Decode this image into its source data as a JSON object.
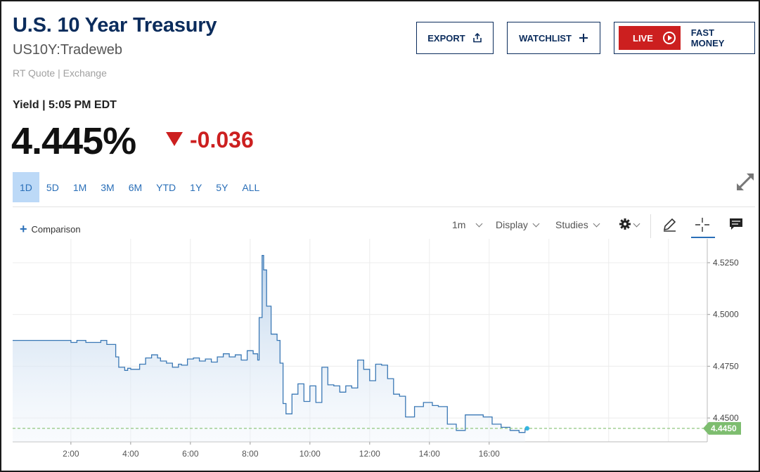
{
  "header": {
    "title": "U.S. 10 Year Treasury",
    "symbol": "US10Y:Tradeweb",
    "quote_source": "RT Quote | Exchange",
    "yield_label": "Yield | 5:05 PM EDT",
    "price": "4.445%",
    "change": "-0.036",
    "change_color": "#cc1f1f"
  },
  "actions": {
    "export_label": "EXPORT",
    "watchlist_label": "WATCHLIST",
    "live_label": "LIVE",
    "fast_money_label": "FAST MONEY"
  },
  "ranges": [
    {
      "label": "1D",
      "active": true
    },
    {
      "label": "5D"
    },
    {
      "label": "1M"
    },
    {
      "label": "3M"
    },
    {
      "label": "6M"
    },
    {
      "label": "YTD"
    },
    {
      "label": "1Y"
    },
    {
      "label": "5Y"
    },
    {
      "label": "ALL"
    }
  ],
  "toolbar": {
    "comparison_label": "Comparison",
    "interval_label": "1m",
    "display_label": "Display",
    "studies_label": "Studies",
    "icons": [
      "gear-icon",
      "pencil-icon",
      "crosshair-icon",
      "comment-icon"
    ]
  },
  "chart_data": {
    "type": "area",
    "x_ticks": [
      "2:00",
      "4:00",
      "6:00",
      "8:00",
      "10:00",
      "12:00",
      "14:00",
      "16:00"
    ],
    "y_ticks": [
      "4.5250",
      "4.5000",
      "4.4750",
      "4.4500"
    ],
    "ylim": [
      4.4385,
      4.5345
    ],
    "xlim_hours": [
      0.05,
      23.3
    ],
    "last_value_label": "4.4450",
    "last_value": 4.445,
    "line_color": "#3a78b5",
    "last_marker_color": "#7dbd6f",
    "x": [
      0.05,
      1.0,
      2.0,
      2.2,
      2.5,
      3.0,
      3.2,
      3.5,
      3.6,
      3.8,
      3.9,
      4.0,
      4.1,
      4.3,
      4.5,
      4.7,
      4.9,
      5.0,
      5.2,
      5.4,
      5.6,
      5.7,
      5.9,
      6.1,
      6.3,
      6.5,
      6.7,
      6.9,
      7.1,
      7.3,
      7.5,
      7.7,
      7.9,
      8.1,
      8.25,
      8.3,
      8.4,
      8.45,
      8.55,
      8.7,
      8.9,
      9.0,
      9.1,
      9.2,
      9.4,
      9.6,
      9.8,
      10.0,
      10.2,
      10.4,
      10.6,
      10.8,
      11.0,
      11.2,
      11.4,
      11.6,
      11.8,
      12.0,
      12.2,
      12.4,
      12.6,
      12.8,
      13.0,
      13.2,
      13.5,
      13.8,
      14.1,
      14.3,
      14.6,
      14.9,
      15.2,
      15.5,
      15.8,
      16.1,
      16.4,
      16.7,
      17.0,
      17.2
    ],
    "y": [
      4.4875,
      4.4875,
      4.4865,
      4.4875,
      4.4865,
      4.4875,
      4.4855,
      4.4795,
      4.4745,
      4.473,
      4.474,
      4.4735,
      4.4735,
      4.476,
      4.479,
      4.4805,
      4.479,
      4.4775,
      4.4765,
      4.4745,
      4.476,
      4.4755,
      4.4785,
      4.479,
      4.4775,
      4.4785,
      4.477,
      4.4795,
      4.481,
      4.4795,
      4.4805,
      4.478,
      4.4825,
      4.481,
      4.478,
      4.4985,
      4.5285,
      4.5215,
      4.504,
      4.4905,
      4.4875,
      4.4765,
      4.457,
      4.452,
      4.4615,
      4.4665,
      4.458,
      4.4655,
      4.4575,
      4.4745,
      4.466,
      4.4655,
      4.4625,
      4.4655,
      4.4645,
      4.478,
      4.4735,
      4.468,
      4.476,
      4.4755,
      4.469,
      4.4615,
      4.4605,
      4.4505,
      4.4555,
      4.4575,
      4.456,
      4.4555,
      4.447,
      4.444,
      4.4515,
      4.4515,
      4.4505,
      4.447,
      4.4455,
      4.444,
      4.443,
      4.445
    ]
  }
}
